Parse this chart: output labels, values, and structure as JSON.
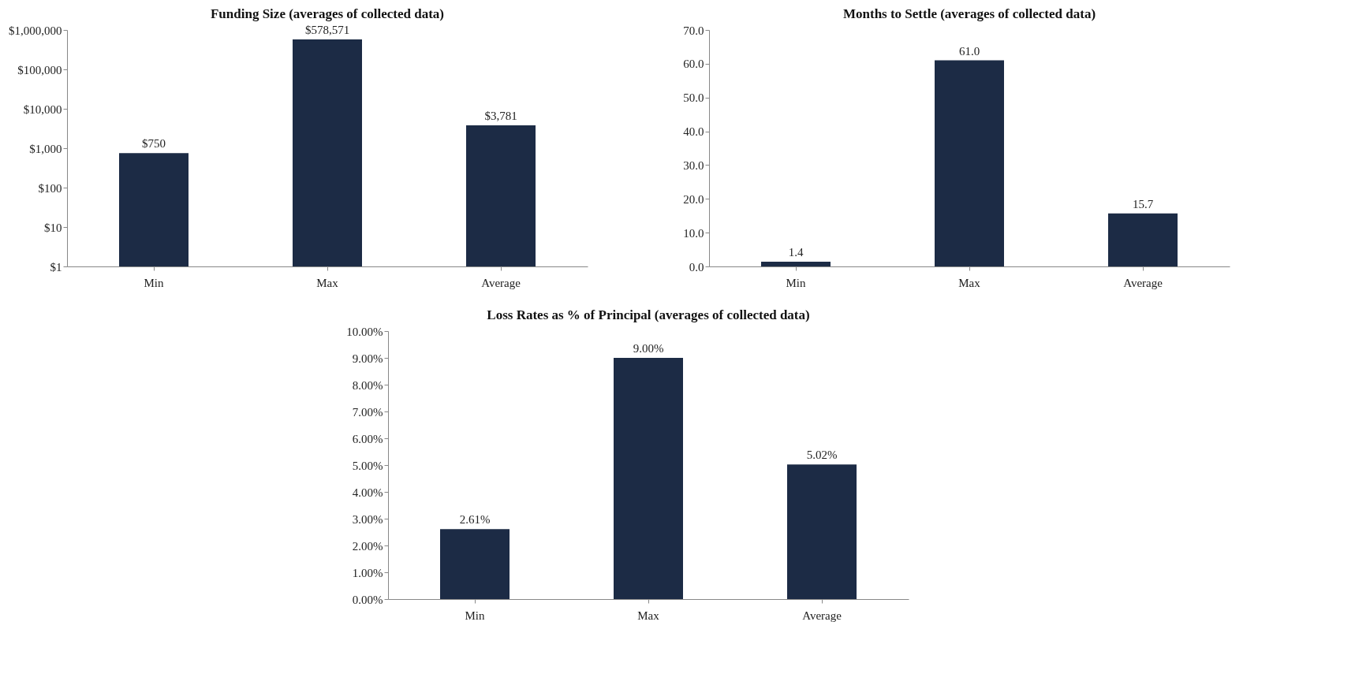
{
  "chart_data": [
    {
      "type": "bar",
      "title": "Funding Size (averages of collected data)",
      "categories": [
        "Min",
        "Max",
        "Average"
      ],
      "values": [
        750,
        578571,
        3781
      ],
      "value_labels": [
        "$750",
        "$578,571",
        "$3,781"
      ],
      "color": "#1c2b45",
      "log": true,
      "ylim": [
        1,
        1000000
      ],
      "yticks": [
        {
          "value": 1,
          "label": "$1"
        },
        {
          "value": 10,
          "label": "$10"
        },
        {
          "value": 100,
          "label": "$100"
        },
        {
          "value": 1000,
          "label": "$1,000"
        },
        {
          "value": 10000,
          "label": "$10,000"
        },
        {
          "value": 100000,
          "label": "$100,000"
        },
        {
          "value": 1000000,
          "label": "$1,000,000"
        }
      ]
    },
    {
      "type": "bar",
      "title": "Months to Settle (averages of collected data)",
      "categories": [
        "Min",
        "Max",
        "Average"
      ],
      "values": [
        1.4,
        61.0,
        15.7
      ],
      "value_labels": [
        "1.4",
        "61.0",
        "15.7"
      ],
      "color": "#1c2b45",
      "ylim": [
        0,
        70
      ],
      "yticks": [
        {
          "value": 0,
          "label": "0.0"
        },
        {
          "value": 10,
          "label": "10.0"
        },
        {
          "value": 20,
          "label": "20.0"
        },
        {
          "value": 30,
          "label": "30.0"
        },
        {
          "value": 40,
          "label": "40.0"
        },
        {
          "value": 50,
          "label": "50.0"
        },
        {
          "value": 60,
          "label": "60.0"
        },
        {
          "value": 70,
          "label": "70.0"
        }
      ]
    },
    {
      "type": "bar",
      "title": "Loss Rates as % of Principal (averages of collected data)",
      "categories": [
        "Min",
        "Max",
        "Average"
      ],
      "values": [
        2.61,
        9.0,
        5.02
      ],
      "value_labels": [
        "2.61%",
        "9.00%",
        "5.02%"
      ],
      "color": "#1c2b45",
      "ylim": [
        0,
        10
      ],
      "yticks": [
        {
          "value": 0,
          "label": "0.00%"
        },
        {
          "value": 1,
          "label": "1.00%"
        },
        {
          "value": 2,
          "label": "2.00%"
        },
        {
          "value": 3,
          "label": "3.00%"
        },
        {
          "value": 4,
          "label": "4.00%"
        },
        {
          "value": 5,
          "label": "5.00%"
        },
        {
          "value": 6,
          "label": "6.00%"
        },
        {
          "value": 7,
          "label": "7.00%"
        },
        {
          "value": 8,
          "label": "8.00%"
        },
        {
          "value": 9,
          "label": "9.00%"
        },
        {
          "value": 10,
          "label": "10.00%"
        }
      ]
    }
  ]
}
